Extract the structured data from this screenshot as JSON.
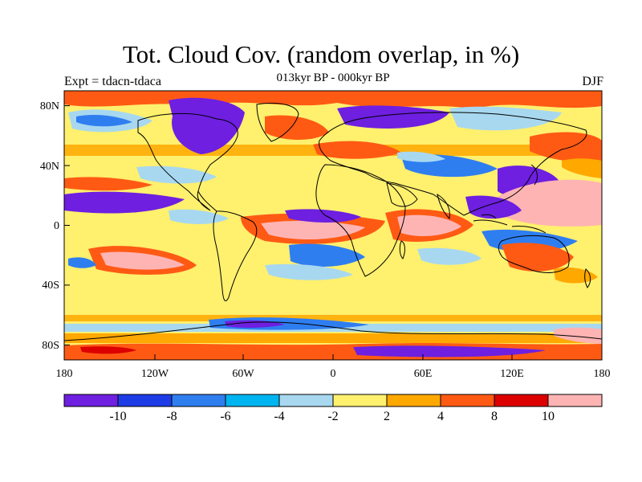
{
  "title": "Tot. Cloud Cov. (random overlap, in %)",
  "subtitle": "013kyr BP - 000kyr BP",
  "expt_label": "Expt = tdacn-tdaca",
  "season": "DJF",
  "latitude_labels": [
    "80N",
    "40N",
    "0",
    "40S",
    "80S"
  ],
  "longitude_labels": [
    "180",
    "120W",
    "60W",
    "0",
    "60E",
    "120E",
    "180"
  ],
  "colorbar": {
    "colors": [
      "#6e1fe0",
      "#1e3ce6",
      "#2f7ef0",
      "#00b4f0",
      "#a8d8f0",
      "#fff06e",
      "#ffa800",
      "#ff5a14",
      "#dc0000",
      "#ffb4b4"
    ],
    "labels": [
      "-10",
      "-8",
      "-6",
      "-4",
      "-2",
      "2",
      "4",
      "8",
      "10"
    ]
  },
  "legend_colors": {
    "background_field": "#fff06e",
    "land_outline": "#000000"
  }
}
